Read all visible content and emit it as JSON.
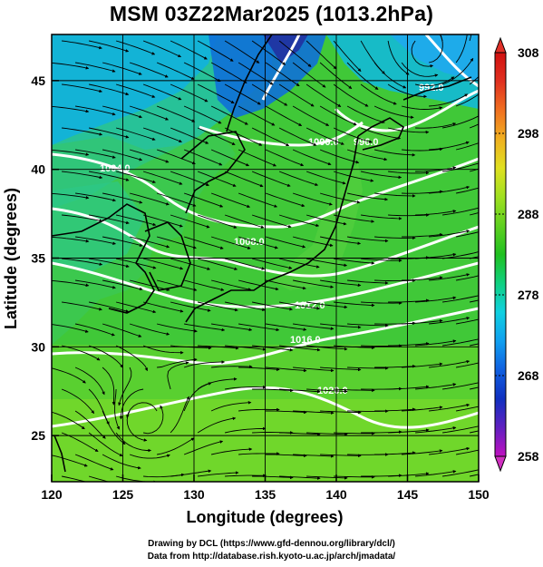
{
  "title": "MSM 03Z22Mar2025 (1013.2hPa)",
  "axes": {
    "xlabel": "Longitude (degrees)",
    "ylabel": "Latitude  (degrees)",
    "x_ticks": [
      "120",
      "125",
      "130",
      "135",
      "140",
      "145",
      "150"
    ],
    "y_ticks": [
      "25",
      "30",
      "35",
      "40",
      "45"
    ],
    "xlim": [
      120,
      150
    ],
    "ylim": [
      22.4,
      47.6
    ]
  },
  "colorbar": {
    "labels": [
      "308",
      "298",
      "288",
      "278",
      "268",
      "258"
    ],
    "range": [
      258,
      308
    ],
    "colors": [
      "#c010c0",
      "#6020c0",
      "#1030c0",
      "#1060e0",
      "#10a0f0",
      "#10d0e0",
      "#10d080",
      "#20c020",
      "#60d020",
      "#a0e020",
      "#e0e020",
      "#f0b020",
      "#f07020",
      "#e03020",
      "#d01010"
    ]
  },
  "isobars": {
    "labels": [
      "1000.0",
      "1004.0",
      "1008.0",
      "1012.0",
      "1016.0",
      "1020.0",
      "996.0",
      "992.0"
    ]
  },
  "credits": {
    "line1": "Drawing by DCL (https://www.gfd-dennou.org/library/dcl/)",
    "line2": "Data from http://database.rish.kyoto-u.ac.jp/arch/jmadata/"
  }
}
